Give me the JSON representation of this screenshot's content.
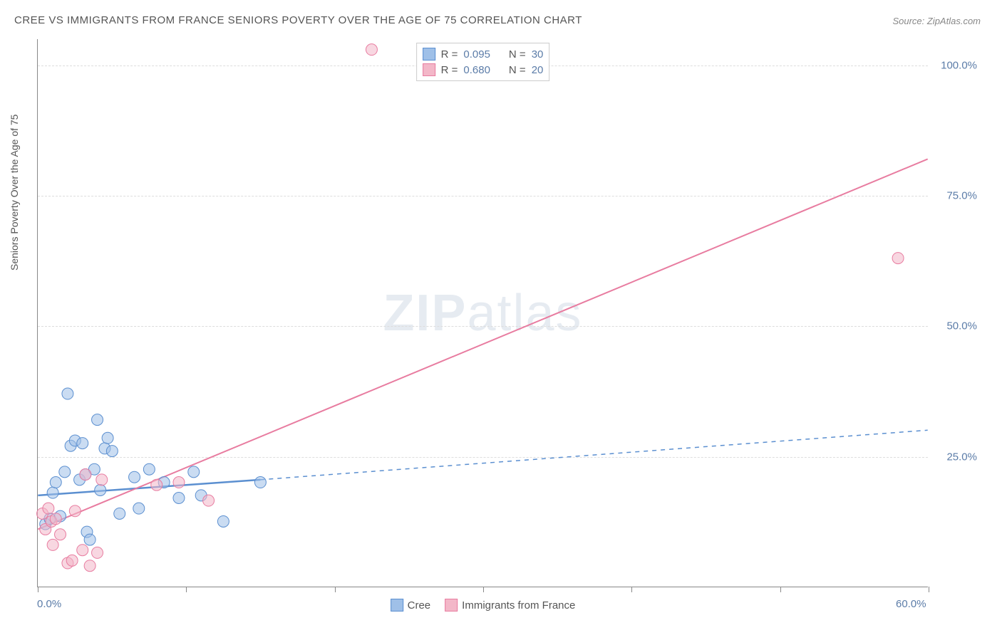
{
  "title": "CREE VS IMMIGRANTS FROM FRANCE SENIORS POVERTY OVER THE AGE OF 75 CORRELATION CHART",
  "source": "Source: ZipAtlas.com",
  "y_axis_label": "Seniors Poverty Over the Age of 75",
  "watermark_bold": "ZIP",
  "watermark_light": "atlas",
  "chart": {
    "type": "scatter",
    "xlim": [
      0,
      60
    ],
    "ylim": [
      0,
      105
    ],
    "x_ticks_major": [
      0,
      10,
      20,
      30,
      40,
      50,
      60
    ],
    "x_tick_labels": {
      "0": "0.0%",
      "60": "60.0%"
    },
    "y_gridlines": [
      25,
      50,
      75,
      100
    ],
    "y_tick_labels": {
      "25": "25.0%",
      "50": "50.0%",
      "75": "75.0%",
      "100": "100.0%"
    },
    "background_color": "#ffffff",
    "grid_color": "#dddddd",
    "axis_color": "#888888",
    "point_radius": 8,
    "point_opacity": 0.55,
    "series": [
      {
        "name": "Cree",
        "label": "Cree",
        "fill_color": "#9fc0e8",
        "stroke_color": "#5b8fd0",
        "R": "0.095",
        "N": "30",
        "trend": {
          "solid_from": [
            0,
            17.5
          ],
          "solid_to": [
            15,
            20.5
          ],
          "dashed_to": [
            60,
            30
          ],
          "stroke_width": 2.5
        },
        "points": [
          [
            0.5,
            12
          ],
          [
            0.8,
            13
          ],
          [
            1.0,
            18
          ],
          [
            1.2,
            20
          ],
          [
            1.5,
            13.5
          ],
          [
            1.8,
            22
          ],
          [
            2.0,
            37
          ],
          [
            2.2,
            27
          ],
          [
            2.5,
            28
          ],
          [
            2.8,
            20.5
          ],
          [
            3.0,
            27.5
          ],
          [
            3.2,
            21.5
          ],
          [
            3.3,
            10.5
          ],
          [
            3.5,
            9
          ],
          [
            3.8,
            22.5
          ],
          [
            4.0,
            32
          ],
          [
            4.2,
            18.5
          ],
          [
            4.5,
            26.5
          ],
          [
            4.7,
            28.5
          ],
          [
            5.0,
            26
          ],
          [
            5.5,
            14
          ],
          [
            6.5,
            21
          ],
          [
            6.8,
            15
          ],
          [
            7.5,
            22.5
          ],
          [
            8.5,
            20
          ],
          [
            9.5,
            17
          ],
          [
            10.5,
            22
          ],
          [
            11.0,
            17.5
          ],
          [
            12.5,
            12.5
          ],
          [
            15.0,
            20
          ]
        ]
      },
      {
        "name": "Immigrants from France",
        "label": "Immigrants from France",
        "fill_color": "#f3b7c8",
        "stroke_color": "#e87ca0",
        "R": "0.680",
        "N": "20",
        "trend": {
          "solid_from": [
            0,
            11
          ],
          "solid_to": [
            60,
            82
          ],
          "stroke_width": 2
        },
        "points": [
          [
            0.3,
            14
          ],
          [
            0.5,
            11
          ],
          [
            0.7,
            15
          ],
          [
            0.9,
            12.5
          ],
          [
            1.0,
            8
          ],
          [
            1.2,
            13
          ],
          [
            1.5,
            10
          ],
          [
            2.0,
            4.5
          ],
          [
            2.3,
            5
          ],
          [
            2.5,
            14.5
          ],
          [
            3.0,
            7
          ],
          [
            3.2,
            21.5
          ],
          [
            3.5,
            4
          ],
          [
            4.0,
            6.5
          ],
          [
            4.3,
            20.5
          ],
          [
            8.0,
            19.5
          ],
          [
            9.5,
            20
          ],
          [
            11.5,
            16.5
          ],
          [
            22.5,
            103
          ],
          [
            58,
            63
          ]
        ]
      }
    ]
  },
  "legend_top": {
    "rows": [
      {
        "swatch_fill": "#9fc0e8",
        "swatch_stroke": "#5b8fd0",
        "r_label": "R =",
        "r_val": "0.095",
        "n_label": "N =",
        "n_val": "30"
      },
      {
        "swatch_fill": "#f3b7c8",
        "swatch_stroke": "#e87ca0",
        "r_label": "R =",
        "r_val": "0.680",
        "n_label": "N =",
        "n_val": "20"
      }
    ]
  },
  "legend_bottom": [
    {
      "swatch_fill": "#9fc0e8",
      "swatch_stroke": "#5b8fd0",
      "label": "Cree"
    },
    {
      "swatch_fill": "#f3b7c8",
      "swatch_stroke": "#e87ca0",
      "label": "Immigrants from France"
    }
  ]
}
